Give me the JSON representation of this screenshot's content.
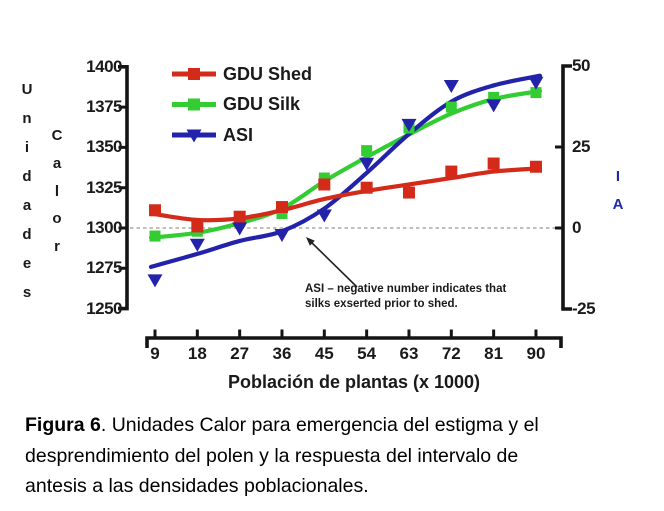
{
  "figure": {
    "caption_label": "Figura 6",
    "caption_text": ". Unidades Calor para emergencia del estigma y el desprendimiento del polen y la respuesta del intervalo de antesis a las densidades poblacionales."
  },
  "chart_data": {
    "type": "line",
    "title": "",
    "xlabel": "Población de plantas (x 1000)",
    "ylabel_left": "Unidades Calor",
    "ylabel_left_words": [
      "Unidades",
      "Calor"
    ],
    "ylabel_right": "IA",
    "x": [
      9,
      18,
      27,
      36,
      45,
      54,
      63,
      72,
      81,
      90
    ],
    "left_axis": {
      "ticks": [
        1400,
        1375,
        1350,
        1325,
        1300,
        1275,
        1250
      ],
      "range": [
        1250,
        1400
      ]
    },
    "right_axis": {
      "ticks": [
        50,
        25,
        0,
        -25
      ],
      "range": [
        -25,
        50
      ]
    },
    "grid": false,
    "legend_position": "top-inside",
    "zero_reference": {
      "left": 1300,
      "right": 0,
      "style": "dashed"
    },
    "series": [
      {
        "name": "GDU Shed",
        "axis": "left",
        "color": "#d42a1a",
        "marker": "square",
        "values": [
          1311,
          1301,
          1307,
          1313,
          1327,
          1325,
          1322,
          1335,
          1340,
          1338
        ],
        "trend": [
          1309,
          1305,
          1306,
          1311,
          1318,
          1323,
          1327,
          1331,
          1335,
          1337
        ]
      },
      {
        "name": "GDU Silk",
        "axis": "left",
        "color": "#33cc33",
        "marker": "square",
        "values": [
          1295,
          1298,
          1304,
          1309,
          1331,
          1348,
          1362,
          1375,
          1381,
          1384
        ],
        "trend": [
          1294,
          1297,
          1303,
          1312,
          1329,
          1344,
          1358,
          1371,
          1380,
          1385
        ]
      },
      {
        "name": "ASI",
        "axis": "right",
        "color": "#2222aa",
        "marker": "triangle-down",
        "values": [
          -16,
          -5,
          0,
          -2,
          4,
          20,
          32,
          44,
          38,
          45
        ],
        "trend": [
          -12,
          -8,
          -4,
          -1,
          6,
          17,
          29,
          39,
          44,
          47
        ]
      }
    ],
    "annotation": {
      "line1": "ASI – negative number indicates that",
      "line2": "silks exserted prior to shed."
    }
  }
}
